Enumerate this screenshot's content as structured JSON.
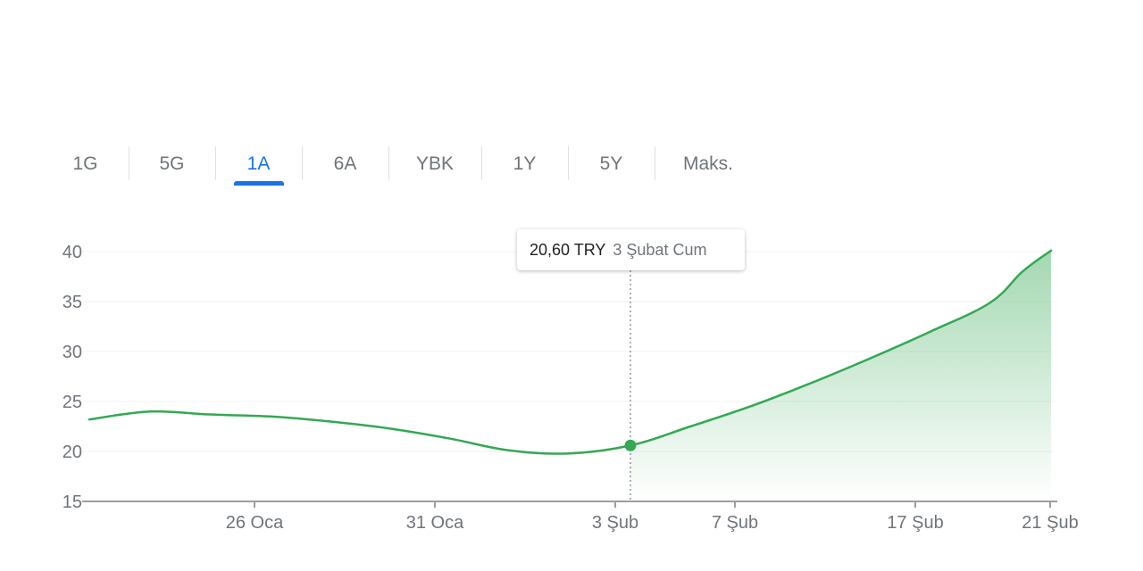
{
  "range_tabs": [
    {
      "label": "1G",
      "active": false
    },
    {
      "label": "5G",
      "active": false
    },
    {
      "label": "1A",
      "active": true
    },
    {
      "label": "6A",
      "active": false
    },
    {
      "label": "YBK",
      "active": false
    },
    {
      "label": "1Y",
      "active": false
    },
    {
      "label": "5Y",
      "active": false
    },
    {
      "label": "Maks.",
      "active": false
    }
  ],
  "tooltip": {
    "price": "20,60 TRY",
    "date": "3 Şubat Cum"
  },
  "colors": {
    "line": "#34a853",
    "accent": "#1a73e8",
    "axis": "#9e9e9e",
    "grid": "#f1f3f4"
  },
  "chart_data": {
    "type": "area",
    "title": "",
    "xlabel": "",
    "ylabel": "",
    "ylim": [
      15,
      40
    ],
    "yticks": [
      15,
      20,
      25,
      30,
      35,
      40
    ],
    "xticks": [
      "26 Oca",
      "31 Oca",
      "3 Şub",
      "7 Şub",
      "17 Şub",
      "21 Şub"
    ],
    "grid": true,
    "series": [
      {
        "values": [
          23.2,
          24.0,
          23.7,
          23.5,
          23.0,
          22.3,
          21.3,
          20.1,
          19.8,
          20.6,
          22.5,
          24.5,
          26.8,
          29.3,
          32.0,
          34.9,
          38.0,
          40.1
        ]
      }
    ],
    "highlight": {
      "index": 9,
      "value": 20.6,
      "label": "3 Şub"
    }
  }
}
